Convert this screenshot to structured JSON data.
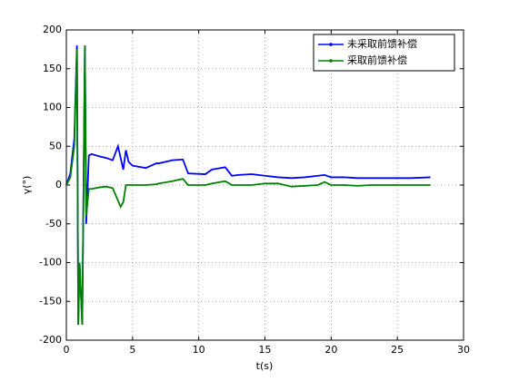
{
  "chart_data": {
    "type": "line",
    "x_label": "t(s)",
    "y_label": "γ(°)",
    "x": [
      0,
      0.3,
      0.6,
      0.8,
      0.9,
      1.0,
      1.2,
      1.4,
      1.5,
      1.7,
      1.9,
      2.5,
      3.0,
      3.5,
      3.9,
      4.1,
      4.3,
      4.5,
      4.7,
      5.0,
      6.0,
      6.8,
      7.0,
      8.0,
      8.8,
      9.2,
      10.5,
      11.0,
      12.0,
      12.5,
      13.0,
      14.0,
      15.0,
      16.0,
      17.0,
      18.0,
      19.0,
      19.5,
      20.0,
      21.0,
      22.0,
      23.0,
      24.0,
      25.0,
      26.0,
      27.5
    ],
    "series": [
      {
        "name": "未采取前馈补偿",
        "color": "#0000ff",
        "values": [
          0,
          15,
          60,
          180,
          -180,
          -100,
          -180,
          180,
          -50,
          38,
          40,
          37,
          35,
          32,
          50,
          35,
          20,
          45,
          30,
          25,
          22,
          28,
          28,
          32,
          33,
          15,
          14,
          20,
          23,
          12,
          13,
          14,
          12,
          10,
          9,
          10,
          12,
          13,
          10,
          10,
          9,
          9,
          9,
          9,
          9,
          10
        ]
      },
      {
        "name": "采取前馈补偿",
        "color": "#008000",
        "values": [
          0,
          10,
          50,
          175,
          -180,
          -100,
          -180,
          180,
          -40,
          -5,
          -5,
          -3,
          -2,
          -4,
          -20,
          -28,
          -22,
          0,
          0,
          0,
          0,
          1,
          2,
          5,
          8,
          0,
          0,
          2,
          5,
          0,
          0,
          0,
          2,
          2,
          -2,
          -1,
          0,
          4,
          0,
          0,
          -1,
          0,
          0,
          0,
          0,
          0
        ]
      }
    ],
    "xlim": [
      0,
      30
    ],
    "xticks": [
      0,
      5,
      10,
      15,
      20,
      25,
      30
    ],
    "ylim": [
      -200,
      200
    ],
    "yticks": [
      -200,
      -150,
      -100,
      -50,
      0,
      50,
      100,
      150,
      200
    ],
    "grid": true,
    "legend_position": "upper right"
  }
}
